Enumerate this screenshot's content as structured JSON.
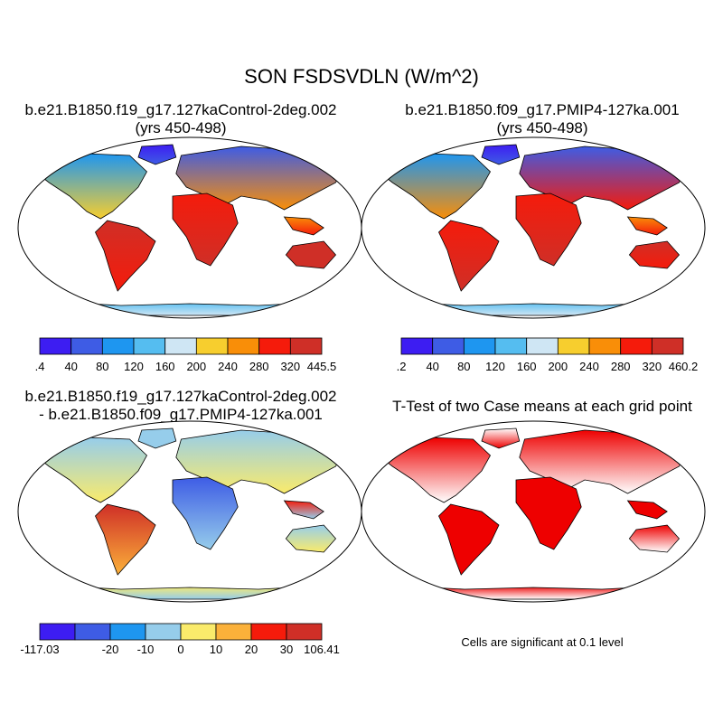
{
  "figure": {
    "title": "SON FSDSVDLN (W/m^2)"
  },
  "panels": [
    {
      "id": "control",
      "title_line1": "b.e21.B1850.f19_g17.127kaControl-2deg.002",
      "title_line2": "(yrs 450-498)",
      "field": "absolute"
    },
    {
      "id": "pmip4",
      "title_line1": "b.e21.B1850.f09_g17.PMIP4-127ka.001",
      "title_line2": "(yrs 450-498)",
      "field": "absolute"
    },
    {
      "id": "difference",
      "title_line1": "b.e21.B1850.f19_g17.127kaControl-2deg.002",
      "title_line2": "- b.e21.B1850.f09_g17.PMIP4-127ka.001",
      "field": "difference"
    },
    {
      "id": "ttest",
      "title_line1": "T-Test of two Case means at each grid point",
      "title_line2": "",
      "field": "significance"
    }
  ],
  "colorbars": {
    "control": {
      "colors": [
        "#3d1df2",
        "#3e5ce5",
        "#1e96f0",
        "#55bdf0",
        "#cfe6f4",
        "#f7ce2e",
        "#f98e08",
        "#f51b0b",
        "#cf2f27"
      ],
      "labels": [
        ".4",
        "40",
        "80",
        "120",
        "160",
        "200",
        "240",
        "280",
        "320",
        "445.5"
      ]
    },
    "pmip4": {
      "colors": [
        "#3d1df2",
        "#3e5ce5",
        "#1e96f0",
        "#55bdf0",
        "#cfe6f4",
        "#f7ce2e",
        "#f98e08",
        "#f51b0b",
        "#cf2f27"
      ],
      "labels": [
        ".2",
        "40",
        "80",
        "120",
        "160",
        "200",
        "240",
        "280",
        "320",
        "460.2"
      ]
    },
    "difference": {
      "colors": [
        "#3d1df2",
        "#3e5ce5",
        "#1e96f0",
        "#96cdeb",
        "#faeb6b",
        "#fbb13a",
        "#f51b0b",
        "#cf2f27"
      ],
      "labels": [
        "-117.03",
        "-20",
        "-10",
        "0",
        "10",
        "20",
        "30",
        "106.41"
      ]
    }
  },
  "significance_note": "Cells are significant at 0.1 level",
  "significance_color": "#ee0000"
}
